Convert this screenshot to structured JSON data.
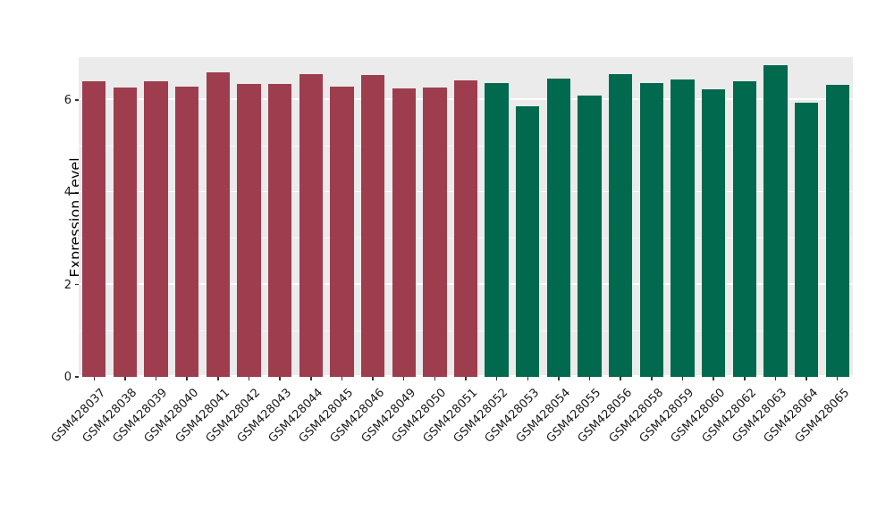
{
  "chart_data": {
    "type": "bar",
    "title": "",
    "xlabel": "",
    "ylabel": "Expression Level",
    "categories": [
      "GSM428037",
      "GSM428038",
      "GSM428039",
      "GSM428040",
      "GSM428041",
      "GSM428042",
      "GSM428043",
      "GSM428044",
      "GSM428045",
      "GSM428046",
      "GSM428049",
      "GSM428050",
      "GSM428051",
      "GSM428052",
      "GSM428053",
      "GSM428054",
      "GSM428055",
      "GSM428056",
      "GSM428058",
      "GSM428059",
      "GSM428060",
      "GSM428062",
      "GSM428063",
      "GSM428064",
      "GSM428065"
    ],
    "values": [
      6.41,
      6.27,
      6.41,
      6.29,
      6.6,
      6.35,
      6.35,
      6.56,
      6.29,
      6.54,
      6.25,
      6.27,
      6.43,
      6.37,
      5.86,
      6.47,
      6.1,
      6.56,
      6.37,
      6.45,
      6.23,
      6.41,
      6.76,
      5.94,
      6.33
    ],
    "bar_group_index": [
      0,
      0,
      0,
      0,
      0,
      0,
      0,
      0,
      0,
      0,
      0,
      0,
      0,
      1,
      1,
      1,
      1,
      1,
      1,
      1,
      1,
      1,
      1,
      1,
      1
    ],
    "groups": [
      {
        "name": "group-1",
        "color": "#9e3d4e"
      },
      {
        "name": "group-2",
        "color": "#01694d"
      }
    ],
    "yticks": [
      0,
      2,
      4,
      6
    ],
    "minor_ticks": [
      1,
      3,
      5
    ],
    "ylim": [
      0,
      6.93
    ],
    "grid": true,
    "legend": "none",
    "panel_background": "#ebebeb",
    "gridline_color": "#ffffff"
  }
}
